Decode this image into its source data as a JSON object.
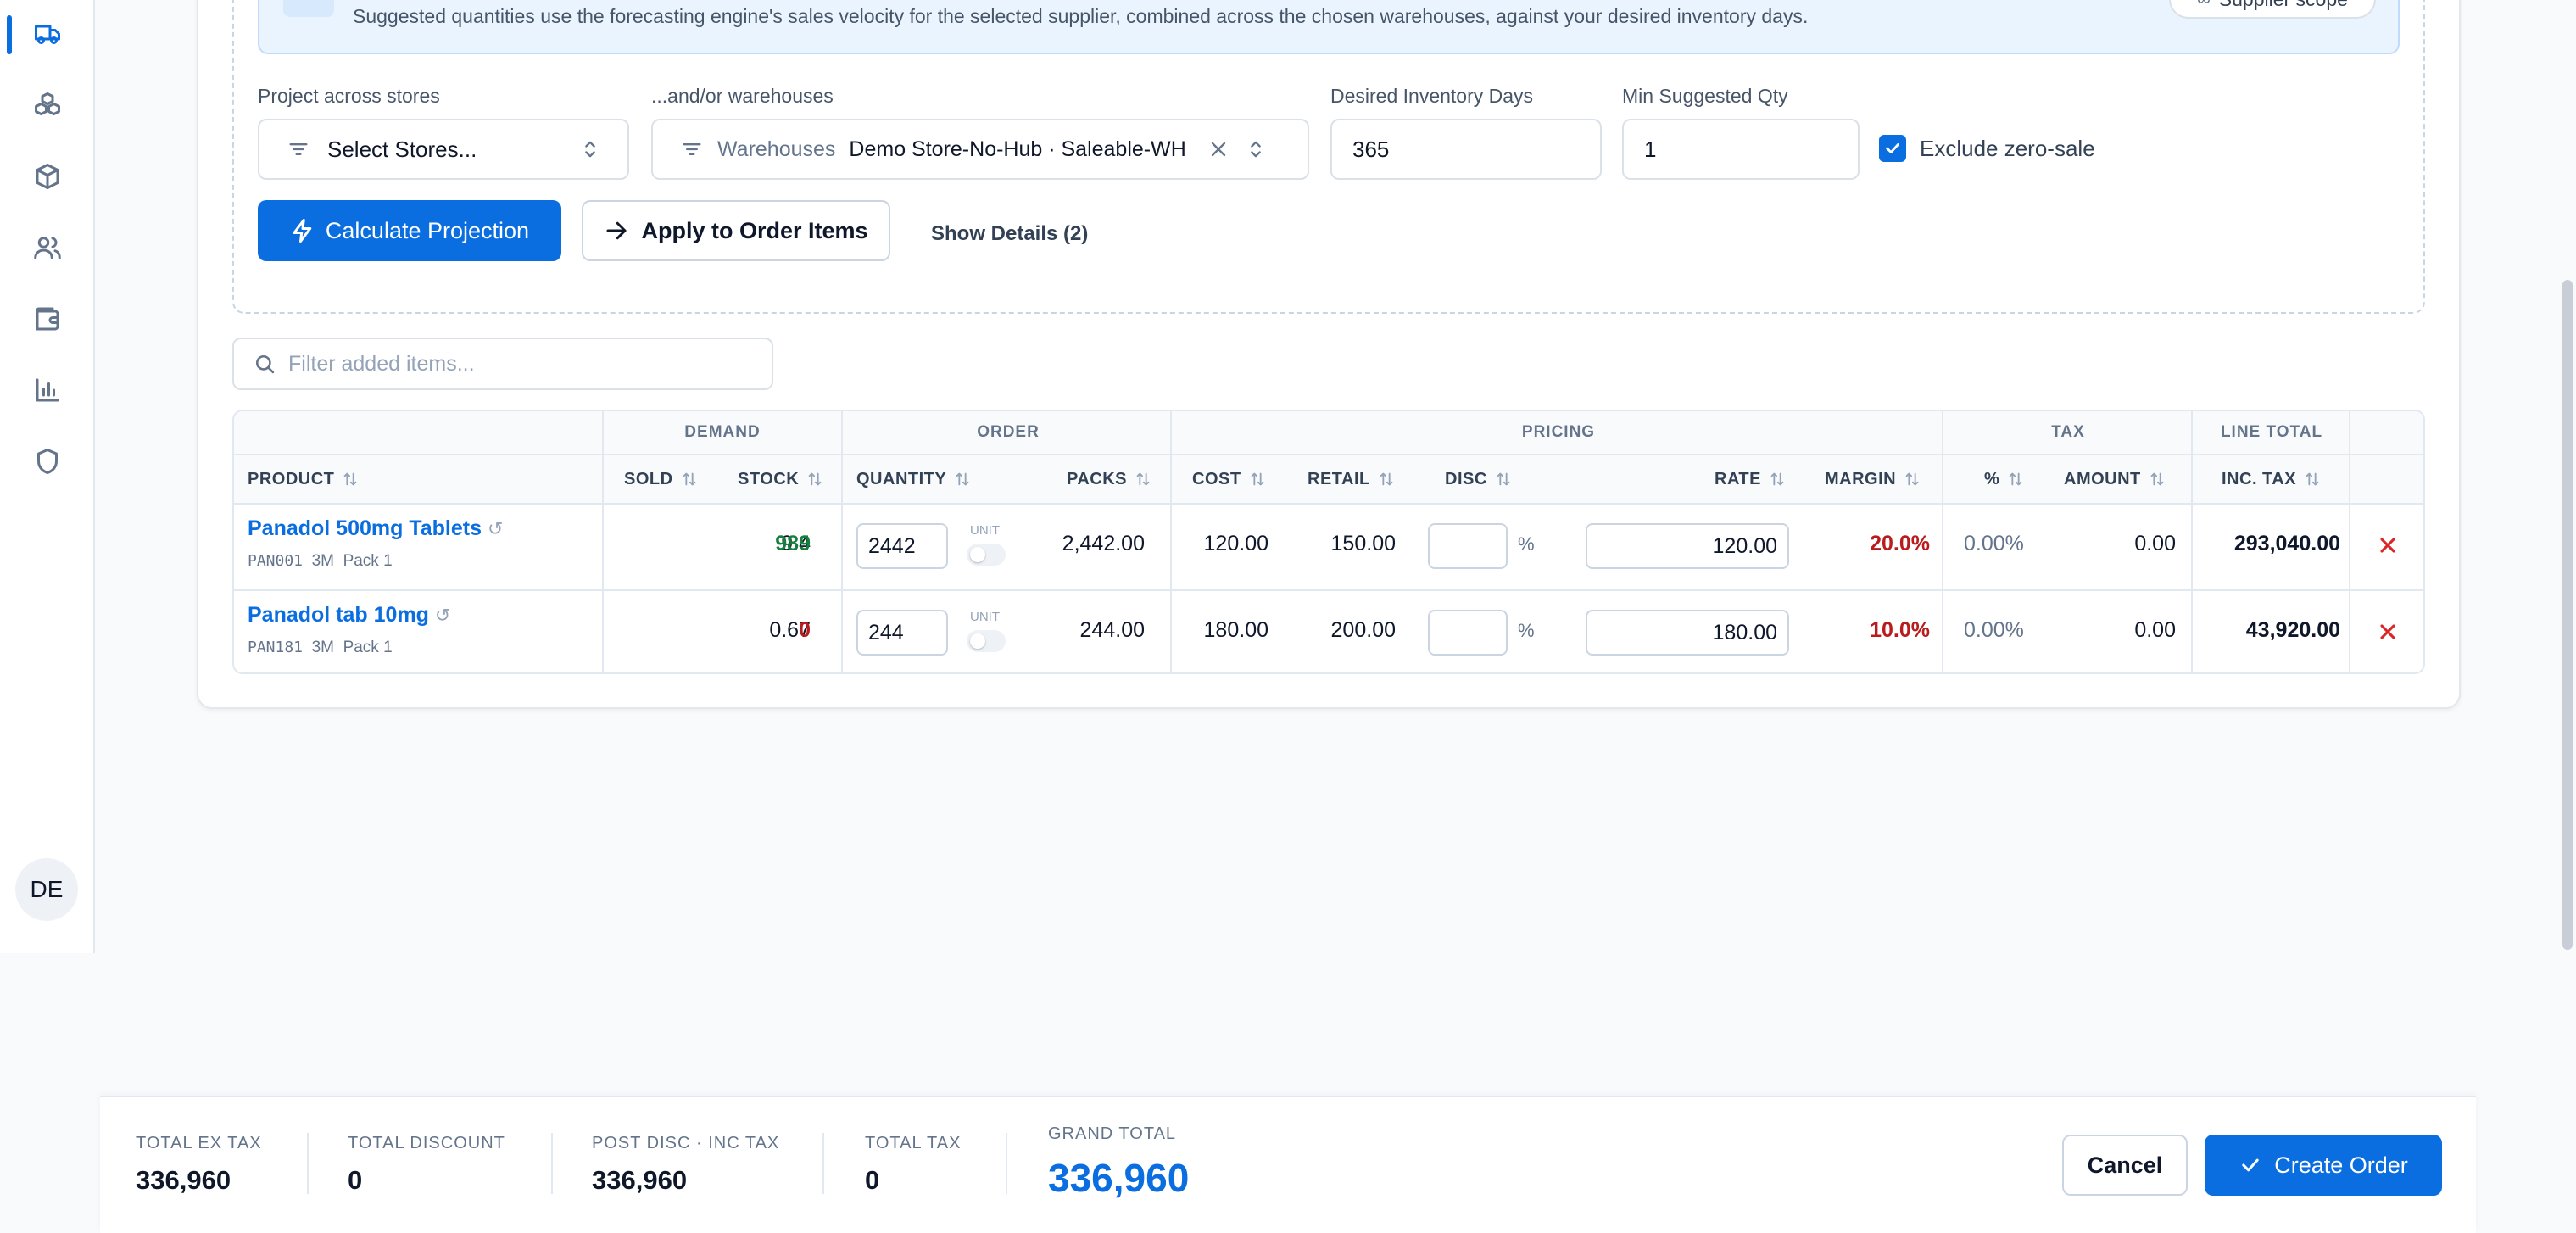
{
  "sidebar": {
    "icons": [
      "truck-icon",
      "boxes-icon",
      "package-icon",
      "users-icon",
      "wallet-icon",
      "bar-chart-icon",
      "shield-icon"
    ],
    "avatar": "DE"
  },
  "projection": {
    "info_text": "Suggested quantities use the forecasting engine's sales velocity for the selected supplier, combined across the chosen warehouses, against your desired inventory days.",
    "scope_button": "Supplier scope",
    "stores_label": "Project across stores",
    "stores_placeholder": "Select Stores...",
    "warehouses_label": "...and/or warehouses",
    "warehouses_prefix": "Warehouses",
    "warehouses_value": "Demo Store-No-Hub · Saleable-WH",
    "days_label": "Desired Inventory Days",
    "days_value": "365",
    "min_qty_label": "Min Suggested Qty",
    "min_qty_value": "1",
    "exclude_zero_label": "Exclude zero-sale",
    "exclude_zero_checked": true,
    "calculate_label": "Calculate Projection",
    "apply_label": "Apply to Order Items",
    "show_details_label": "Show Details (2)"
  },
  "filter": {
    "placeholder": "Filter added items..."
  },
  "table": {
    "groups": {
      "demand": "DEMAND",
      "order": "ORDER",
      "pricing": "PRICING",
      "tax": "TAX",
      "line_total": "LINE TOTAL"
    },
    "headers": {
      "product": "PRODUCT",
      "sold": "SOLD",
      "stock": "STOCK",
      "quantity": "QUANTITY",
      "packs": "PACKS",
      "cost": "COST",
      "retail": "RETAIL",
      "disc": "DISC",
      "rate": "RATE",
      "margin": "MARGIN",
      "tax_pct": "%",
      "amount": "AMOUNT",
      "inc_tax": "INC. TAX"
    },
    "unit_label": "UNIT",
    "percent_sign": "%",
    "rows": [
      {
        "name": "Panadol 500mg Tablets",
        "code": "PAN001",
        "period": "3M",
        "pack": "Pack 1",
        "sold": "9.4",
        "stock": "989",
        "quantity": "2442",
        "packs": "2,442.00",
        "cost": "120.00",
        "retail": "150.00",
        "disc": "",
        "rate": "120.00",
        "margin": "20.0%",
        "tax_pct": "0.00%",
        "amount": "0.00",
        "inc_tax": "293,040.00"
      },
      {
        "name": "Panadol tab 10mg",
        "code": "PAN181",
        "period": "3M",
        "pack": "Pack 1",
        "sold": "0.67",
        "stock": "0",
        "quantity": "244",
        "packs": "244.00",
        "cost": "180.00",
        "retail": "200.00",
        "disc": "",
        "rate": "180.00",
        "margin": "10.0%",
        "tax_pct": "0.00%",
        "amount": "0.00",
        "inc_tax": "43,920.00"
      }
    ]
  },
  "footer": {
    "total_ex_tax_label": "TOTAL EX TAX",
    "total_ex_tax": "336,960",
    "total_discount_label": "TOTAL DISCOUNT",
    "total_discount": "0",
    "post_disc_label": "POST DISC · INC TAX",
    "post_disc": "336,960",
    "total_tax_label": "TOTAL TAX",
    "total_tax": "0",
    "grand_total_label": "GRAND TOTAL",
    "grand_total": "336,960",
    "cancel_label": "Cancel",
    "create_label": "Create Order"
  },
  "colors": {
    "accent": "#0a6ee0",
    "positive": "#15803d",
    "negative": "#b91c1c"
  }
}
